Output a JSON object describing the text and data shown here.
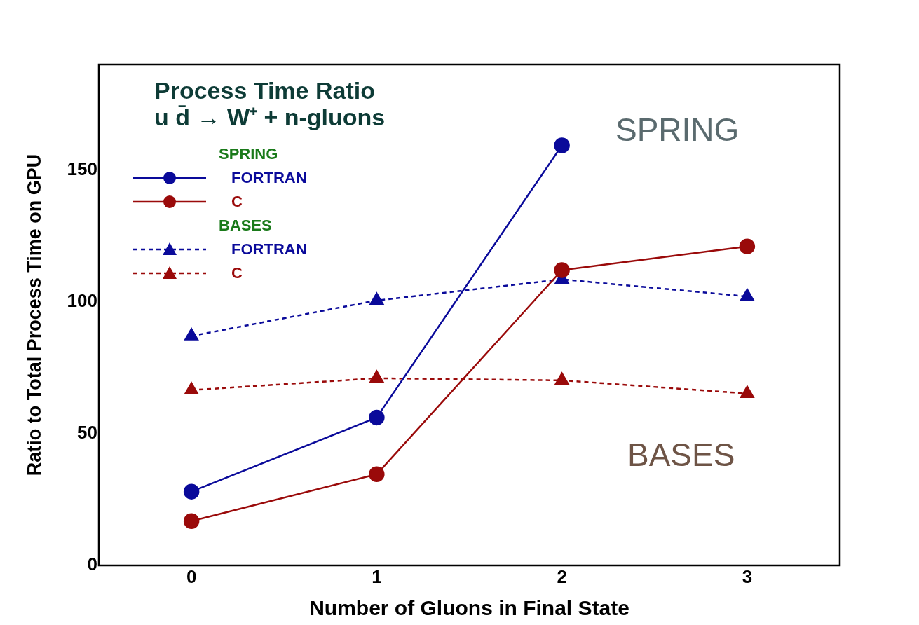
{
  "chart_data": {
    "type": "line",
    "title": "Process Time Ratio",
    "subtitle": "u d̄ → W⁺ + n-gluons",
    "xlabel": "Number of Gluons in Final State",
    "ylabel": "Ratio to Total Process Time on GPU",
    "x": [
      0,
      1,
      2,
      3
    ],
    "xlim": [
      -0.5,
      3.5
    ],
    "xticks": [
      0,
      1,
      2,
      3
    ],
    "ylim": [
      0,
      190
    ],
    "yticks": [
      0,
      50,
      100,
      150
    ],
    "grid": false,
    "legend": "top left",
    "series": [
      {
        "name": "FORTRAN",
        "color": "#0a0a9a",
        "values": [
          28,
          56.1,
          159.3,
          null
        ],
        "marker": "circle",
        "line_style": "solid"
      },
      {
        "name": "C",
        "color": "#9a0a0a",
        "values": [
          16.8,
          34.6,
          112,
          121
        ],
        "marker": "circle",
        "line_style": "solid"
      },
      {
        "name": "FORTRAN",
        "color": "#0a0a9a",
        "values": [
          87,
          100.5,
          108.5,
          102
        ],
        "marker": "triangle",
        "line_style": "dashed"
      },
      {
        "name": "C",
        "color": "#9a0a0a",
        "values": [
          66.5,
          71,
          70.2,
          65.2
        ],
        "marker": "triangle",
        "line_style": "dashed"
      }
    ],
    "annotations": [
      "SPRING",
      "BASES",
      "SPRING",
      "BASES"
    ]
  }
}
